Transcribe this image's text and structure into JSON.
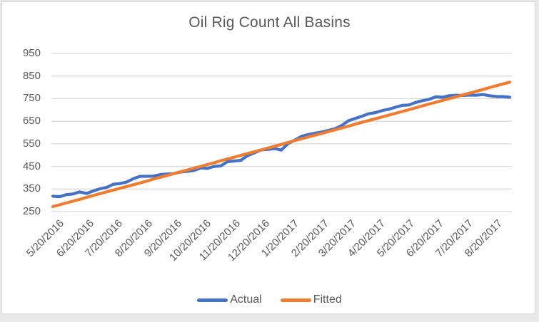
{
  "frame": {
    "background": "#ffffff",
    "border_color": "#d5d5d5",
    "outer_background": "#e8e8e8"
  },
  "chart_data": {
    "type": "line",
    "title": "Oil Rig Count All Basins",
    "xlabel": "",
    "ylabel": "",
    "ylim": [
      250,
      950
    ],
    "y_ticks": [
      250,
      350,
      450,
      550,
      650,
      750,
      850,
      950
    ],
    "grid": "horizontal",
    "gridline_color": "#D9D9D9",
    "text_color": "#595959",
    "legend_position": "bottom",
    "x_tick_labels": [
      "5/20/2016",
      "6/20/2016",
      "7/20/2016",
      "8/20/2016",
      "9/20/2016",
      "10/20/2016",
      "11/20/2016",
      "12/20/2016",
      "1/20/2017",
      "2/20/2017",
      "3/20/2017",
      "4/20/2017",
      "5/20/2017",
      "6/20/2017",
      "7/20/2017",
      "8/20/2017"
    ],
    "x": [
      "5/20/2016",
      "5/27/2016",
      "6/3/2016",
      "6/10/2016",
      "6/17/2016",
      "6/24/2016",
      "7/1/2016",
      "7/8/2016",
      "7/15/2016",
      "7/22/2016",
      "7/29/2016",
      "8/5/2016",
      "8/12/2016",
      "8/19/2016",
      "8/26/2016",
      "9/2/2016",
      "9/9/2016",
      "9/16/2016",
      "9/23/2016",
      "9/30/2016",
      "10/7/2016",
      "10/14/2016",
      "10/21/2016",
      "10/28/2016",
      "11/4/2016",
      "11/11/2016",
      "11/18/2016",
      "11/25/2016",
      "12/2/2016",
      "12/9/2016",
      "12/16/2016",
      "12/23/2016",
      "12/30/2016",
      "1/6/2017",
      "1/13/2017",
      "1/20/2017",
      "1/27/2017",
      "2/3/2017",
      "2/10/2017",
      "2/17/2017",
      "2/24/2017",
      "3/3/2017",
      "3/10/2017",
      "3/17/2017",
      "3/24/2017",
      "3/31/2017",
      "4/7/2017",
      "4/14/2017",
      "4/21/2017",
      "4/28/2017",
      "5/5/2017",
      "5/12/2017",
      "5/19/2017",
      "5/26/2017",
      "6/2/2017",
      "6/9/2017",
      "6/16/2017",
      "6/23/2017",
      "6/30/2017",
      "7/7/2017",
      "7/14/2017",
      "7/21/2017",
      "7/28/2017",
      "8/4/2017",
      "8/11/2017",
      "8/18/2017",
      "8/25/2017",
      "9/1/2017",
      "9/8/2017"
    ],
    "series": [
      {
        "name": "Actual",
        "color": "#4472C4",
        "values": [
          318,
          316,
          325,
          328,
          337,
          330,
          341,
          351,
          357,
          371,
          374,
          381,
          396,
          406,
          406,
          407,
          414,
          416,
          418,
          425,
          428,
          432,
          443,
          441,
          450,
          452,
          471,
          474,
          477,
          498,
          510,
          523,
          525,
          529,
          522,
          551,
          566,
          583,
          591,
          597,
          602,
          609,
          617,
          631,
          652,
          662,
          672,
          683,
          688,
          697,
          703,
          712,
          720,
          722,
          733,
          741,
          747,
          758,
          756,
          763,
          765,
          764,
          766,
          765,
          768,
          763,
          759,
          759,
          756
        ]
      },
      {
        "name": "Fitted",
        "color": "#ED7D31",
        "values": [
          272,
          280,
          288,
          296,
          304,
          313,
          321,
          329,
          337,
          345,
          353,
          361,
          369,
          377,
          385,
          394,
          402,
          410,
          418,
          426,
          434,
          442,
          450,
          458,
          466,
          475,
          483,
          491,
          499,
          507,
          515,
          523,
          531,
          539,
          547,
          556,
          564,
          572,
          580,
          588,
          596,
          604,
          612,
          620,
          628,
          637,
          645,
          653,
          661,
          669,
          677,
          685,
          693,
          701,
          709,
          718,
          726,
          734,
          742,
          750,
          758,
          766,
          774,
          782,
          790,
          799,
          807,
          815,
          823
        ]
      }
    ]
  }
}
